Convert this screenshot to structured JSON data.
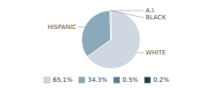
{
  "chart_data": {
    "type": "pie",
    "categories": [
      "WHITE",
      "HISPANIC",
      "BLACK",
      "A.I."
    ],
    "values": [
      65.1,
      34.3,
      0.5,
      0.2
    ],
    "value_labels": [
      "65.1%",
      "34.3%",
      "0.5%",
      "0.2%"
    ],
    "colors": [
      "#cfd8e0",
      "#8aaabb",
      "#5a7f96",
      "#1f3f55"
    ],
    "legend": "bottom"
  }
}
